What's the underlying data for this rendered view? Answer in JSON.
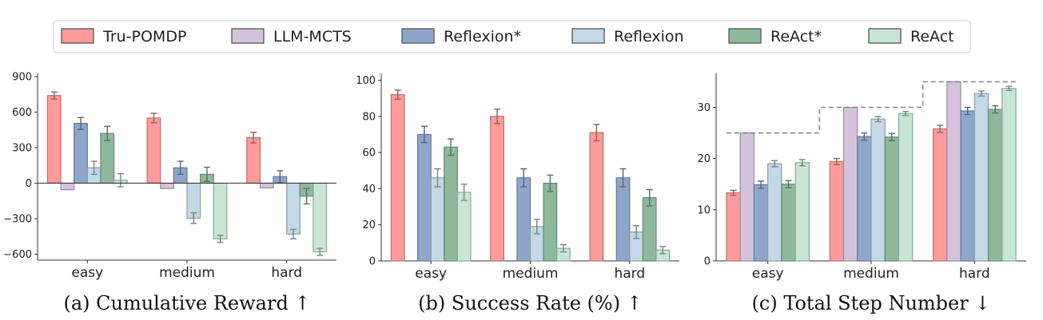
{
  "legend": [
    {
      "name": "Tru-POMDP",
      "color": "#ff9b9b"
    },
    {
      "name": "LLM-MCTS",
      "color": "#d5c3dc"
    },
    {
      "name": "Reflexion*",
      "color": "#8ea6ca"
    },
    {
      "name": "Reflexion",
      "color": "#c4d8e6"
    },
    {
      "name": "ReAct*",
      "color": "#8fb99d"
    },
    {
      "name": "ReAct",
      "color": "#c7e6d4"
    }
  ],
  "chart_data": [
    {
      "type": "bar",
      "caption": "(a) Cumulative Reward ↑",
      "categories": [
        "easy",
        "medium",
        "hard"
      ],
      "ylim": [
        -650,
        900
      ],
      "yticks": [
        900,
        600,
        300,
        0,
        -300,
        -600
      ],
      "zero_line": true,
      "series": [
        {
          "name": "Tru-POMDP",
          "values": [
            740,
            550,
            385
          ],
          "err": [
            30,
            40,
            45
          ]
        },
        {
          "name": "LLM-MCTS",
          "values": [
            -55,
            -45,
            -40
          ],
          "err": [
            0,
            0,
            0
          ]
        },
        {
          "name": "Reflexion*",
          "values": [
            505,
            130,
            55
          ],
          "err": [
            50,
            55,
            50
          ]
        },
        {
          "name": "Reflexion",
          "values": [
            130,
            -295,
            -430
          ],
          "err": [
            55,
            45,
            40
          ]
        },
        {
          "name": "ReAct*",
          "values": [
            420,
            75,
            -110
          ],
          "err": [
            60,
            60,
            65
          ]
        },
        {
          "name": "ReAct",
          "values": [
            25,
            -470,
            -580
          ],
          "err": [
            55,
            30,
            30
          ]
        }
      ]
    },
    {
      "type": "bar",
      "caption": "(b) Success Rate (%) ↑",
      "categories": [
        "easy",
        "medium",
        "hard"
      ],
      "ylim": [
        0,
        102
      ],
      "yticks": [
        100,
        80,
        60,
        40,
        20,
        0
      ],
      "zero_line": false,
      "series": [
        {
          "name": "Tru-POMDP",
          "values": [
            92,
            80,
            71
          ],
          "err": [
            2.5,
            4,
            4.5
          ]
        },
        {
          "name": "LLM-MCTS",
          "values": [
            0,
            0,
            0
          ],
          "err": [
            0,
            0,
            0
          ]
        },
        {
          "name": "Reflexion*",
          "values": [
            70,
            46,
            46
          ],
          "err": [
            4.5,
            5,
            5
          ]
        },
        {
          "name": "Reflexion",
          "values": [
            46,
            19,
            16
          ],
          "err": [
            5,
            4,
            3.5
          ]
        },
        {
          "name": "ReAct*",
          "values": [
            63,
            43,
            35
          ],
          "err": [
            4.5,
            4.5,
            4.5
          ]
        },
        {
          "name": "ReAct",
          "values": [
            38,
            7,
            6
          ],
          "err": [
            4.5,
            2,
            2
          ]
        }
      ]
    },
    {
      "type": "bar",
      "caption": "(c) Total Step Number ↓",
      "categories": [
        "easy",
        "medium",
        "hard"
      ],
      "ylim": [
        0,
        36
      ],
      "yticks": [
        30,
        20,
        10,
        0
      ],
      "zero_line": false,
      "max_steps": [
        25,
        30,
        35
      ],
      "series": [
        {
          "name": "Tru-POMDP",
          "values": [
            13.3,
            19.4,
            25.8
          ],
          "err": [
            0.5,
            0.6,
            0.7
          ]
        },
        {
          "name": "LLM-MCTS",
          "values": [
            25,
            30,
            35
          ],
          "err": [
            0,
            0,
            0
          ]
        },
        {
          "name": "Reflexion*",
          "values": [
            14.9,
            24.3,
            29.3
          ],
          "err": [
            0.7,
            0.7,
            0.7
          ]
        },
        {
          "name": "Reflexion",
          "values": [
            19.0,
            27.7,
            32.7
          ],
          "err": [
            0.6,
            0.5,
            0.5
          ]
        },
        {
          "name": "ReAct*",
          "values": [
            15.0,
            24.2,
            29.6
          ],
          "err": [
            0.7,
            0.7,
            0.7
          ]
        },
        {
          "name": "ReAct",
          "values": [
            19.2,
            28.8,
            33.7
          ],
          "err": [
            0.6,
            0.4,
            0.4
          ]
        }
      ]
    }
  ]
}
